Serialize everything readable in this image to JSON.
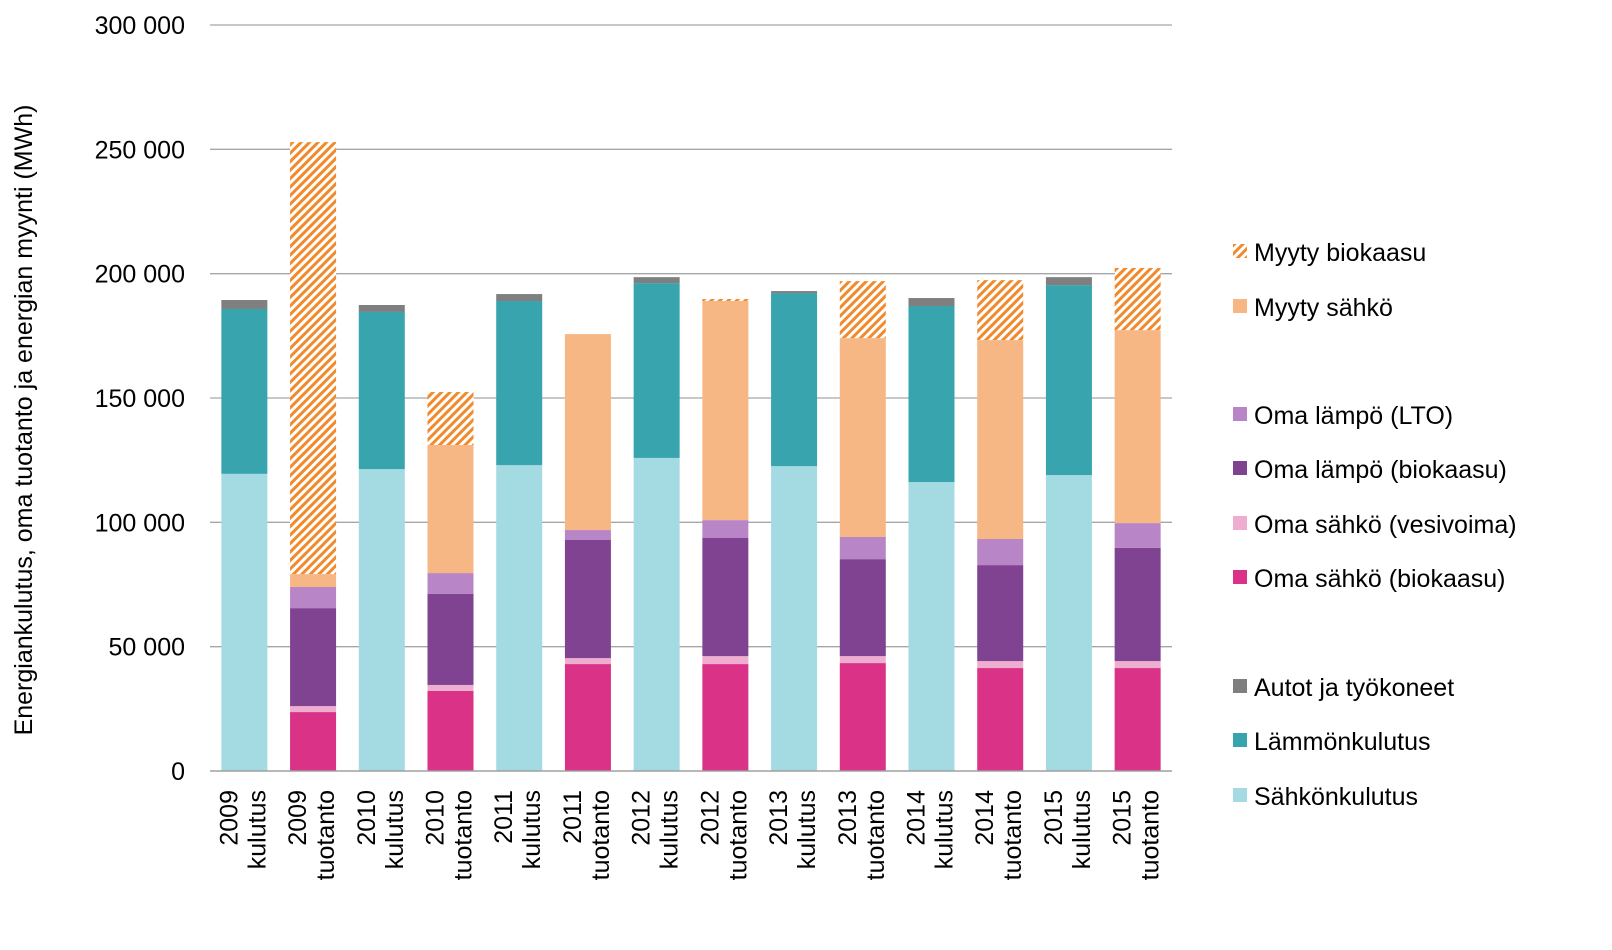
{
  "chart_data": {
    "type": "bar",
    "stacked": true,
    "title": "",
    "ylabel": "Energiankulutus, oma tuotanto ja energian myynti (MWh)",
    "xlabel": "",
    "ylim": [
      0,
      300000
    ],
    "yticks": [
      0,
      50000,
      100000,
      150000,
      200000,
      250000,
      300000
    ],
    "ytick_labels": [
      "0",
      "50 000",
      "100 000",
      "150 000",
      "200 000",
      "250 000",
      "300 000"
    ],
    "grid": true,
    "legend_position": "right",
    "categories": [
      [
        "2009",
        "kulutus"
      ],
      [
        "2009",
        "tuotanto"
      ],
      [
        "2010",
        "kulutus"
      ],
      [
        "2010",
        "tuotanto"
      ],
      [
        "2011",
        "kulutus"
      ],
      [
        "2011",
        "tuotanto"
      ],
      [
        "2012",
        "kulutus"
      ],
      [
        "2012",
        "tuotanto"
      ],
      [
        "2013",
        "kulutus"
      ],
      [
        "2013",
        "tuotanto"
      ],
      [
        "2014",
        "kulutus"
      ],
      [
        "2014",
        "tuotanto"
      ],
      [
        "2015",
        "kulutus"
      ],
      [
        "2015",
        "tuotanto"
      ]
    ],
    "series": [
      {
        "name": "Sähkönkulutus",
        "color": "#a4dbe2",
        "pattern": "solid",
        "values": [
          119500,
          0,
          121400,
          0,
          123000,
          0,
          125900,
          0,
          122600,
          0,
          116200,
          0,
          119000,
          0
        ]
      },
      {
        "name": "Lämmönkulutus",
        "color": "#38a4ae",
        "pattern": "solid",
        "values": [
          66300,
          0,
          63200,
          0,
          66000,
          0,
          70300,
          0,
          69600,
          0,
          70800,
          0,
          76400,
          0
        ]
      },
      {
        "name": "Autot ja työkoneet",
        "color": "#7f7f7f",
        "pattern": "solid",
        "values": [
          3600,
          0,
          2800,
          0,
          2800,
          0,
          2400,
          0,
          800,
          0,
          3200,
          0,
          3200,
          0
        ]
      },
      {
        "name": "Oma sähkö (biokaasu)",
        "color": "#d93287",
        "pattern": "solid",
        "values": [
          0,
          23700,
          0,
          32200,
          0,
          43000,
          0,
          43000,
          0,
          43400,
          0,
          41400,
          0,
          41400
        ]
      },
      {
        "name": "Oma sähkö (vesivoima)",
        "color": "#efadd0",
        "pattern": "solid",
        "values": [
          0,
          2400,
          0,
          2400,
          0,
          2400,
          0,
          3200,
          0,
          2800,
          0,
          2800,
          0,
          2800
        ]
      },
      {
        "name": "Oma lämpö (biokaasu)",
        "color": "#804391",
        "pattern": "solid",
        "values": [
          0,
          39400,
          0,
          36600,
          0,
          47500,
          0,
          47500,
          0,
          39000,
          0,
          38600,
          0,
          45500
        ]
      },
      {
        "name": "Oma lämpö (LTO)",
        "color": "#b886c7",
        "pattern": "solid",
        "values": [
          0,
          8500,
          0,
          8400,
          0,
          4000,
          0,
          7200,
          0,
          8900,
          0,
          10500,
          0,
          10000
        ]
      },
      {
        "name": "Myyty sähkö",
        "color": "#f7b784",
        "pattern": "solid",
        "values": [
          0,
          5200,
          0,
          51500,
          0,
          78800,
          0,
          88100,
          0,
          80000,
          0,
          80000,
          0,
          77600
        ]
      },
      {
        "name": "Myyty biokaasu",
        "color": "#f08a2c",
        "pattern": "hatched",
        "values": [
          0,
          173700,
          0,
          21300,
          0,
          0,
          0,
          800,
          0,
          22900,
          0,
          24100,
          0,
          25000
        ]
      }
    ],
    "legend_order": [
      "Myyty biokaasu",
      "Myyty sähkö",
      "Oma lämpö (LTO)",
      "Oma lämpö (biokaasu)",
      "Oma sähkö (vesivoima)",
      "Oma sähkö (biokaasu)",
      "Autot ja työkoneet",
      "Lämmönkulutus",
      "Sähkönkulutus"
    ]
  }
}
